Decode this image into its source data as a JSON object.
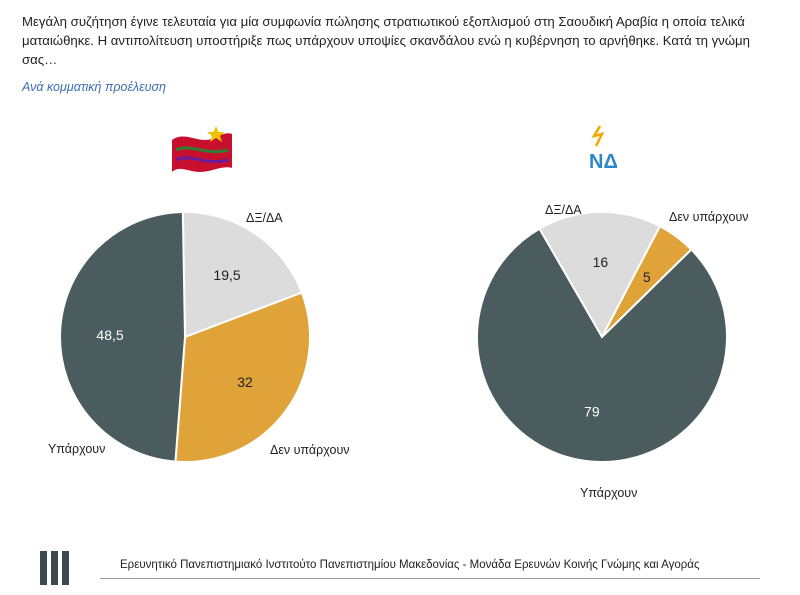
{
  "question": "Μεγάλη συζήτηση έγινε τελευταία για μία συμφωνία πώλησης στρατιωτικού εξοπλισμού στη Σαουδική Αραβία η οποία τελικά ματαιώθηκε. Η αντιπολίτευση υποστήριξε πως υπάρχουν υποψίες σκανδάλου ενώ η κυβέρνηση το αρνήθηκε. Κατά τη γνώμη σας…",
  "subtitle": "Ανά κομματική προέλευση",
  "footer": "Ερευνητικό Πανεπιστημιακό Ινστιτούτο Πανεπιστημίου Μακεδονίας - Μονάδα Ερευνών Κοινής Γνώμης και Αγοράς",
  "logos": {
    "right_party_text": "ΝΔ"
  },
  "colors": {
    "yparxoun": "#4a5c5e",
    "den_yparxoun": "#e0a33a",
    "dxda": "#dcdcdc"
  },
  "chart_data": [
    {
      "type": "pie",
      "title": "",
      "party_logo": "syriza-flag-icon",
      "categories": [
        "Υπάρχουν",
        "Δεν υπάρχουν",
        "ΔΞ/ΔΑ"
      ],
      "values": [
        48.5,
        32,
        19.5
      ],
      "value_labels": [
        "48,5",
        "32",
        "19,5"
      ]
    },
    {
      "type": "pie",
      "title": "",
      "party_logo": "nd-logo-icon",
      "categories": [
        "Υπάρχουν",
        "Δεν υπάρχουν",
        "ΔΞ/ΔΑ"
      ],
      "values": [
        79,
        5,
        16
      ],
      "value_labels": [
        "79",
        "5",
        "16"
      ]
    }
  ]
}
